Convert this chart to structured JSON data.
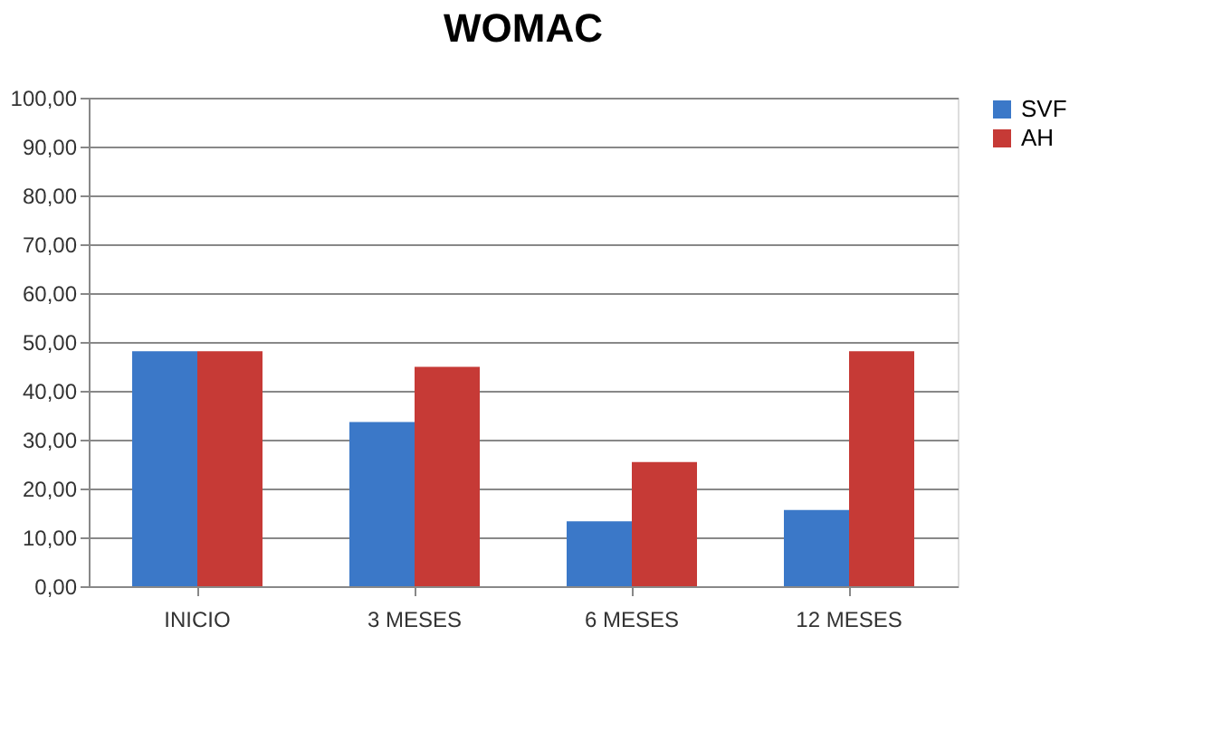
{
  "chart_data": {
    "type": "bar",
    "title": "WOMAC",
    "categories": [
      "INICIO",
      "3 MESES",
      "6 MESES",
      "12 MESES"
    ],
    "series": [
      {
        "name": "SVF",
        "color": "#3b78c8",
        "values": [
          48.1,
          33.6,
          13.3,
          15.6
        ]
      },
      {
        "name": "AH",
        "color": "#c63a36",
        "values": [
          48.1,
          44.9,
          25.4,
          48.1
        ]
      }
    ],
    "ylim": [
      0,
      100
    ],
    "yticks": [
      {
        "value": 0,
        "label": "0,00"
      },
      {
        "value": 10,
        "label": "10,00"
      },
      {
        "value": 20,
        "label": "20,00"
      },
      {
        "value": 30,
        "label": "30,00"
      },
      {
        "value": 40,
        "label": "40,00"
      },
      {
        "value": 50,
        "label": "50,00"
      },
      {
        "value": 60,
        "label": "60,00"
      },
      {
        "value": 70,
        "label": "70,00"
      },
      {
        "value": 80,
        "label": "80,00"
      },
      {
        "value": 90,
        "label": "90,00"
      },
      {
        "value": 100,
        "label": "100,00"
      }
    ],
    "grid": "y",
    "legend": "right"
  }
}
